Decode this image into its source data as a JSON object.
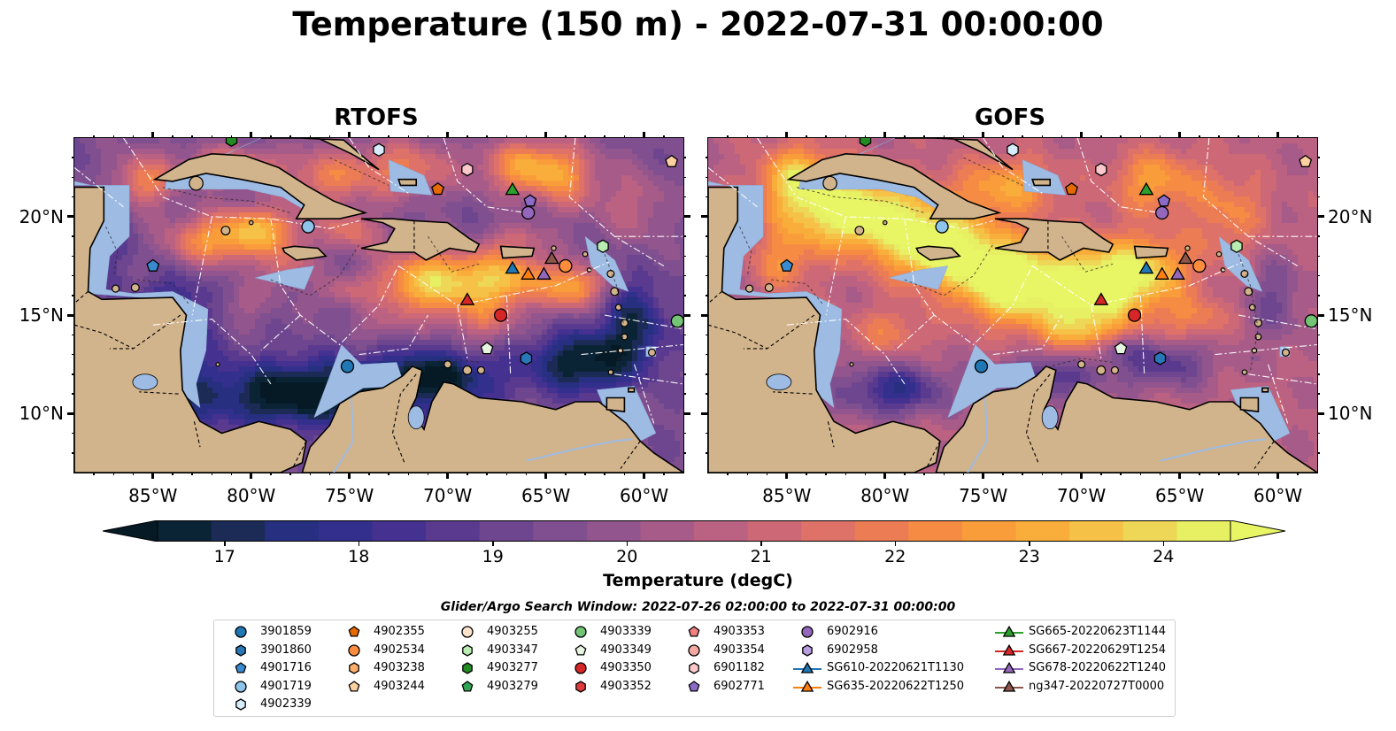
{
  "figure": {
    "title": "Temperature (150 m) - 2022-07-31 00:00:00"
  },
  "panels": [
    {
      "title": "RTOFS",
      "model": "rtofs"
    },
    {
      "title": "GOFS",
      "model": "gofs"
    }
  ],
  "axes": {
    "lon_range": [
      -89,
      -58
    ],
    "lat_range": [
      7,
      24
    ],
    "lon_ticks": [
      {
        "value": -85,
        "label": "85°W"
      },
      {
        "value": -80,
        "label": "80°W"
      },
      {
        "value": -75,
        "label": "75°W"
      },
      {
        "value": -70,
        "label": "70°W"
      },
      {
        "value": -65,
        "label": "65°W"
      },
      {
        "value": -60,
        "label": "60°W"
      }
    ],
    "lat_ticks": [
      {
        "value": 20,
        "label": "20°N"
      },
      {
        "value": 15,
        "label": "15°N"
      },
      {
        "value": 10,
        "label": "10°N"
      }
    ]
  },
  "colorbar": {
    "label": "Temperature (degC)",
    "min": 16.5,
    "max": 24.5,
    "extend": "both",
    "ticks": [
      "17",
      "18",
      "19",
      "20",
      "21",
      "22",
      "23",
      "24"
    ],
    "colors": [
      "#0a2436",
      "#1b2b56",
      "#262f80",
      "#332f8c",
      "#45318f",
      "#593a8f",
      "#6d468f",
      "#7f4f8f",
      "#92558d",
      "#a65b88",
      "#bb6181",
      "#cd6876",
      "#de7268",
      "#ec7c54",
      "#f68c43",
      "#f99c3a",
      "#f9ae3c",
      "#f6c147",
      "#eed657",
      "#e7ef63"
    ],
    "under_color": "#061a26",
    "over_color": "#e8f565"
  },
  "legend": {
    "title": "Glider/Argo Search Window: 2022-07-26 02:00:00 to 2022-07-31 00:00:00",
    "entries": [
      {
        "label": "3901859",
        "marker": "circle",
        "color": "#1f77b4"
      },
      {
        "label": "3901860",
        "marker": "hexagon",
        "color": "#2878b8"
      },
      {
        "label": "4901716",
        "marker": "pentagon",
        "color": "#3a8ad0"
      },
      {
        "label": "4901719",
        "marker": "circle",
        "color": "#8fc4ea"
      },
      {
        "label": "4902339",
        "marker": "hexagon",
        "color": "#d7ecfb"
      },
      {
        "label": "4902355",
        "marker": "pentagon",
        "color": "#e66a00"
      },
      {
        "label": "4902534",
        "marker": "circle",
        "color": "#fd8d3c"
      },
      {
        "label": "4903238",
        "marker": "hexagon",
        "color": "#fdae6b"
      },
      {
        "label": "4903244",
        "marker": "pentagon",
        "color": "#fdd0a2"
      },
      {
        "label": "4903255",
        "marker": "circle",
        "color": "#fde3cc"
      },
      {
        "label": "4903347",
        "marker": "hexagon",
        "color": "#b8ecb0"
      },
      {
        "label": "4903277",
        "marker": "hexagon",
        "color": "#228b22"
      },
      {
        "label": "4903279",
        "marker": "pentagon",
        "color": "#31a354"
      },
      {
        "label": "4903339",
        "marker": "circle",
        "color": "#74c476"
      },
      {
        "label": "4903349",
        "marker": "pentagon",
        "color": "#e5f5e0"
      },
      {
        "label": "4903350",
        "marker": "circle",
        "color": "#d62728"
      },
      {
        "label": "4903352",
        "marker": "hexagon",
        "color": "#e03a3a"
      },
      {
        "label": "4903353",
        "marker": "pentagon",
        "color": "#f08080"
      },
      {
        "label": "4903354",
        "marker": "circle",
        "color": "#f4a8a0"
      },
      {
        "label": "6901182",
        "marker": "hexagon",
        "color": "#fcc8cc"
      },
      {
        "label": "6902771",
        "marker": "pentagon",
        "color": "#8c6bc8"
      },
      {
        "label": "6902916",
        "marker": "circle",
        "color": "#9467bd"
      },
      {
        "label": "6902958",
        "marker": "hexagon",
        "color": "#b89ee0"
      },
      {
        "label": "SG610-20220621T1130",
        "marker": "triangle",
        "color": "#1f77b4",
        "line": true
      },
      {
        "label": "SG635-20220622T1250",
        "marker": "triangle",
        "color": "#ff7f0e",
        "line": true
      },
      {
        "label": "SG665-20220623T1144",
        "marker": "triangle",
        "color": "#2ca02c",
        "line": true
      },
      {
        "label": "SG667-20220629T1254",
        "marker": "triangle",
        "color": "#d62728",
        "line": true
      },
      {
        "label": "SG678-20220622T1240",
        "marker": "triangle",
        "color": "#9467bd",
        "line": true
      },
      {
        "label": "ng347-20220727T0000",
        "marker": "triangle",
        "color": "#8c564b",
        "line": true
      }
    ]
  },
  "observations": [
    {
      "id": "4903277",
      "lon": -81.0,
      "lat": 23.9
    },
    {
      "id": "4902339",
      "lon": -73.5,
      "lat": 23.4
    },
    {
      "id": "6901182",
      "lon": -69.0,
      "lat": 22.4
    },
    {
      "id": "4902355",
      "lon": -70.5,
      "lat": 21.4
    },
    {
      "id": "SG665-20220623T1144",
      "lon": -66.7,
      "lat": 21.4
    },
    {
      "id": "6902771",
      "lon": -65.8,
      "lat": 20.8
    },
    {
      "id": "6902916",
      "lon": -65.9,
      "lat": 20.2
    },
    {
      "id": "4901719",
      "lon": -77.1,
      "lat": 19.5
    },
    {
      "id": "4903347",
      "lon": -62.1,
      "lat": 18.5
    },
    {
      "id": "4901716",
      "lon": -85.0,
      "lat": 17.5
    },
    {
      "id": "ng347-20220727T0000",
      "lon": -64.7,
      "lat": 17.9
    },
    {
      "id": "4902534",
      "lon": -64.0,
      "lat": 17.5
    },
    {
      "id": "SG610-20220621T1130",
      "lon": -66.7,
      "lat": 17.4
    },
    {
      "id": "SG635-20220622T1250",
      "lon": -65.9,
      "lat": 17.1
    },
    {
      "id": "SG678-20220622T1240",
      "lon": -65.1,
      "lat": 17.1
    },
    {
      "id": "SG667-20220629T1254",
      "lon": -69.0,
      "lat": 15.8
    },
    {
      "id": "4903350",
      "lon": -67.3,
      "lat": 15.0
    },
    {
      "id": "4903339",
      "lon": -58.3,
      "lat": 14.7
    },
    {
      "id": "4903349",
      "lon": -68.0,
      "lat": 13.3
    },
    {
      "id": "3901860",
      "lon": -66.0,
      "lat": 12.8
    },
    {
      "id": "3901859",
      "lon": -75.1,
      "lat": 12.4
    },
    {
      "id": "4903244",
      "lon": -58.6,
      "lat": 22.8
    }
  ]
}
